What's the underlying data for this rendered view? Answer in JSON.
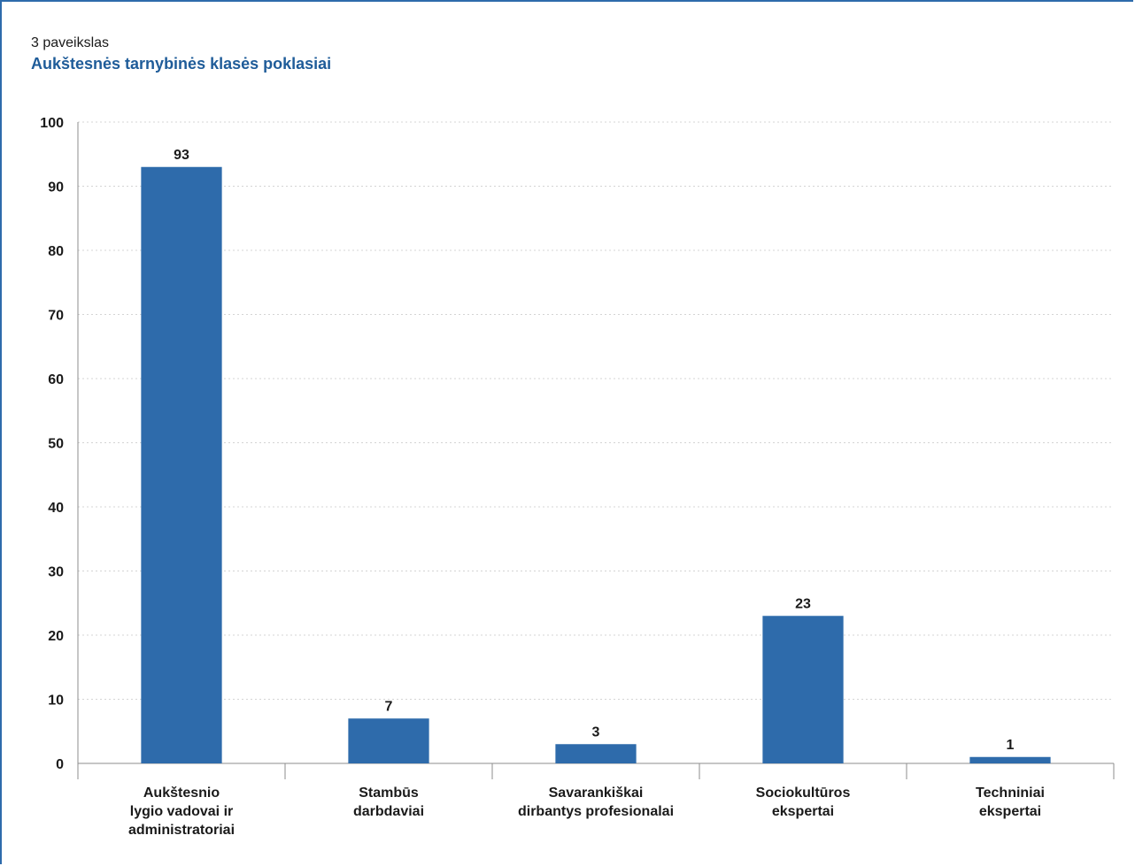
{
  "figure": {
    "label": "3  paveikslas",
    "title": "Aukštesnės tarnybinės klasės poklasiai"
  },
  "colors": {
    "bar": "#2e6bab",
    "title": "#1f5c99",
    "frame": "#2e6bab",
    "grid": "#d4d4d4",
    "axis": "#8c8c8c"
  },
  "chart_data": {
    "type": "bar",
    "title": "Aukštesnės tarnybinės klasės poklasiai",
    "xlabel": "",
    "ylabel": "",
    "categories": [
      [
        "Aukštesnio",
        "lygio vadovai ir",
        "administratoriai"
      ],
      [
        "Stambūs",
        "darbdaviai"
      ],
      [
        "Savarankiškai",
        "dirbantys profesionalai"
      ],
      [
        "Sociokultūros",
        "ekspertai"
      ],
      [
        "Techniniai",
        "ekspertai"
      ]
    ],
    "values": [
      93,
      7,
      3,
      23,
      1
    ],
    "ylim": [
      0,
      100
    ],
    "yticks": [
      0,
      10,
      20,
      30,
      40,
      50,
      60,
      70,
      80,
      90,
      100
    ],
    "grid": true,
    "grid_style": "dotted-horizontal",
    "data_labels": true,
    "legend": "none"
  }
}
